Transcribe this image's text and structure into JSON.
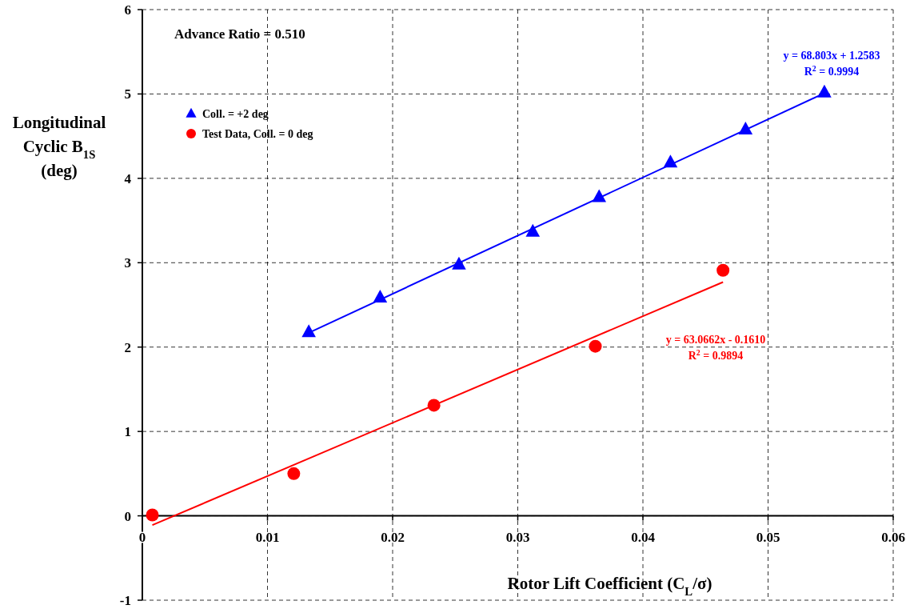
{
  "chart_data": {
    "type": "scatter",
    "xlabel": "Rotor Lift Coefficient (C$_{L}$/σ)",
    "ylabel": "Longitudinal\nCyclic B$_{1S}$\n(deg)",
    "xlim": [
      0,
      0.06
    ],
    "xticks": [
      0,
      0.01,
      0.02,
      0.03,
      0.04,
      0.05,
      0.06
    ],
    "ylim": [
      -1,
      6
    ],
    "yticks": [
      -1,
      0,
      1,
      2,
      3,
      4,
      5,
      6
    ],
    "grid": true,
    "legend": "top left",
    "series": [
      {
        "name": "Coll. = +2 deg",
        "color": "#0000ff",
        "marker": "triangle",
        "x": [
          0.0133,
          0.019,
          0.0253,
          0.0312,
          0.0365,
          0.0422,
          0.0482,
          0.0545
        ],
        "values": [
          2.18,
          2.59,
          2.98,
          3.37,
          3.78,
          4.19,
          4.58,
          5.02
        ]
      },
      {
        "name": "Test Data, Coll. = 0 deg",
        "color": "#ff0000",
        "marker": "circle",
        "x": [
          0.0008,
          0.0121,
          0.0233,
          0.0362,
          0.0464
        ],
        "values": [
          0.01,
          0.5,
          1.31,
          2.01,
          2.91
        ]
      },
      {
        "type": "line",
        "color": "#0000ff",
        "marker": "none",
        "x": [
          0.0133,
          0.0545
        ],
        "values": [
          2.17,
          5.01
        ]
      },
      {
        "type": "line",
        "color": "#ff0000",
        "marker": "none",
        "x": [
          0.0008,
          0.0464
        ],
        "values": [
          -0.11,
          2.77
        ]
      }
    ],
    "annotations": [
      "Advance Ratio = 0.510",
      "y = 68.803x + 1.2583\nR$^{2}$ = 0.9994",
      "y = 63.0662x - 0.1610\nR$^{2}$ = 0.9894"
    ]
  }
}
